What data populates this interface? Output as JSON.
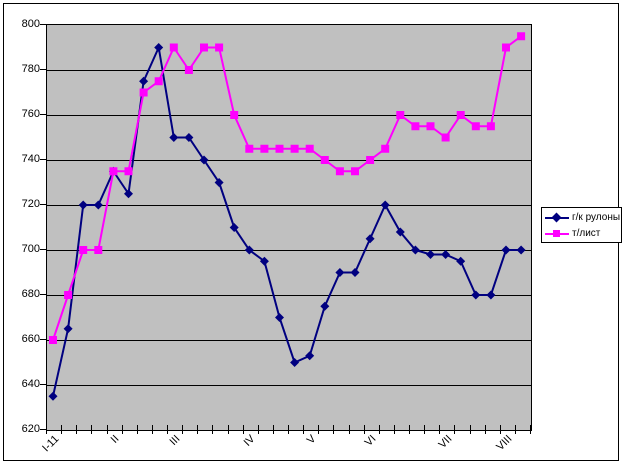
{
  "legend": {
    "items": [
      {
        "label": "г/к рулоны",
        "color": "#000080",
        "marker": "diamond"
      },
      {
        "label": "т/лист",
        "color": "#FF00FF",
        "marker": "square"
      }
    ]
  },
  "chart_data": {
    "type": "line",
    "title": "",
    "categories": [
      "I-11",
      "",
      "",
      "",
      "II",
      "",
      "",
      "",
      "III",
      "",
      "",
      "",
      "",
      "IV",
      "",
      "",
      "",
      "V",
      "",
      "",
      "",
      "VI",
      "",
      "",
      "",
      "",
      "VII",
      "",
      "",
      "",
      "VIII",
      ""
    ],
    "series": [
      {
        "name": "г/к рулоны",
        "color": "#000080",
        "marker": "diamond",
        "values": [
          635,
          665,
          720,
          720,
          735,
          725,
          775,
          790,
          750,
          750,
          740,
          730,
          710,
          700,
          695,
          670,
          650,
          653,
          675,
          690,
          690,
          705,
          720,
          708,
          700,
          698,
          698,
          695,
          680,
          680,
          700,
          700
        ]
      },
      {
        "name": "т/лист",
        "color": "#FF00FF",
        "marker": "square",
        "values": [
          660,
          680,
          700,
          700,
          735,
          735,
          770,
          775,
          790,
          780,
          790,
          790,
          760,
          745,
          745,
          745,
          745,
          745,
          740,
          735,
          735,
          740,
          745,
          760,
          755,
          755,
          750,
          760,
          755,
          755,
          790,
          795
        ]
      }
    ],
    "ylim": [
      620,
      800
    ],
    "yticks": [
      800,
      780,
      760,
      740,
      720,
      700,
      680,
      660,
      640,
      620
    ],
    "grid": true,
    "plot_background": "#C0C0C0",
    "legend_position": "right"
  }
}
